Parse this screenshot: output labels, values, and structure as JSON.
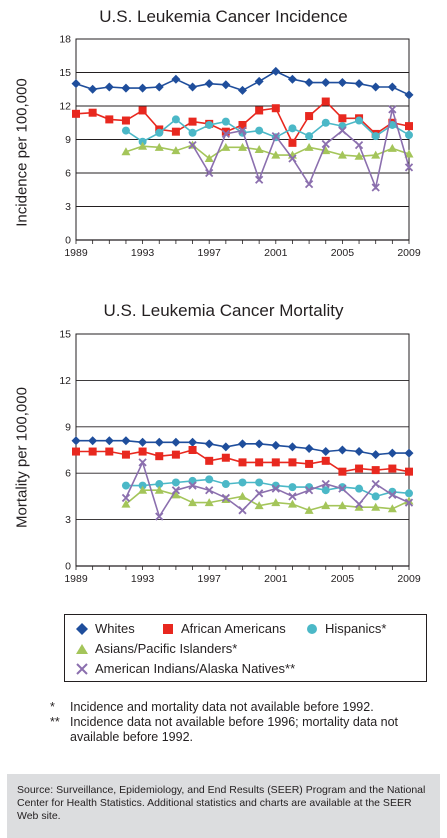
{
  "chart_data": [
    {
      "type": "line",
      "title": "U.S. Leukemia Cancer Incidence",
      "ylabel": "Incidence per 100,000",
      "xlabel": "",
      "ylim": [
        0,
        18
      ],
      "yticks": [
        0,
        3,
        6,
        9,
        12,
        15,
        18
      ],
      "xlim": [
        1989,
        2009
      ],
      "xticks": [
        1989,
        1993,
        1997,
        2001,
        2005,
        2009
      ],
      "grid": "horizontal",
      "series": [
        {
          "name": "Whites",
          "color": "#1f4e9c",
          "marker": "diamond",
          "x": [
            1989,
            1990,
            1991,
            1992,
            1993,
            1994,
            1995,
            1996,
            1997,
            1998,
            1999,
            2000,
            2001,
            2002,
            2003,
            2004,
            2005,
            2006,
            2007,
            2008,
            2009
          ],
          "values": [
            14.0,
            13.5,
            13.7,
            13.6,
            13.6,
            13.7,
            14.4,
            13.7,
            14.0,
            13.9,
            13.4,
            14.2,
            15.1,
            14.4,
            14.1,
            14.1,
            14.1,
            14.0,
            13.7,
            13.7,
            13.0
          ]
        },
        {
          "name": "African Americans",
          "color": "#e8281f",
          "marker": "square",
          "x": [
            1989,
            1990,
            1991,
            1992,
            1993,
            1994,
            1995,
            1996,
            1997,
            1998,
            1999,
            2000,
            2001,
            2002,
            2003,
            2004,
            2005,
            2006,
            2007,
            2008,
            2009
          ],
          "values": [
            11.3,
            11.4,
            10.8,
            10.7,
            11.6,
            9.9,
            9.7,
            10.6,
            10.4,
            9.7,
            10.3,
            11.6,
            11.8,
            8.7,
            11.1,
            12.4,
            10.9,
            10.9,
            9.5,
            10.5,
            10.2
          ]
        },
        {
          "name": "Hispanics*",
          "color": "#4bb8c7",
          "marker": "circle",
          "x": [
            1992,
            1993,
            1994,
            1995,
            1996,
            1997,
            1998,
            1999,
            2000,
            2001,
            2002,
            2003,
            2004,
            2005,
            2006,
            2007,
            2008,
            2009
          ],
          "values": [
            9.8,
            8.8,
            9.6,
            10.8,
            9.6,
            10.3,
            10.6,
            9.6,
            9.8,
            9.2,
            10.0,
            9.3,
            10.5,
            10.2,
            10.7,
            9.3,
            10.3,
            9.4
          ]
        },
        {
          "name": "Asians/Pacific Islanders*",
          "color": "#a4c55a",
          "marker": "triangle",
          "x": [
            1992,
            1993,
            1994,
            1995,
            1996,
            1997,
            1998,
            1999,
            2000,
            2001,
            2002,
            2003,
            2004,
            2005,
            2006,
            2007,
            2008,
            2009
          ],
          "values": [
            7.9,
            8.4,
            8.3,
            8.0,
            8.5,
            7.3,
            8.3,
            8.3,
            8.1,
            7.6,
            7.6,
            8.3,
            8.0,
            7.6,
            7.5,
            7.6,
            8.2,
            7.7
          ]
        },
        {
          "name": "American Indians/Alaska Natives**",
          "color": "#8b6fae",
          "marker": "x",
          "x": [
            1996,
            1997,
            1998,
            1999,
            2000,
            2001,
            2002,
            2003,
            2004,
            2005,
            2006,
            2007,
            2008,
            2009
          ],
          "values": [
            8.5,
            6.0,
            9.5,
            9.8,
            5.4,
            9.3,
            7.3,
            5.0,
            8.6,
            9.8,
            8.5,
            4.7,
            11.7,
            6.5
          ]
        }
      ]
    },
    {
      "type": "line",
      "title": "U.S. Leukemia Cancer Mortality",
      "ylabel": "Mortality per 100,000",
      "xlabel": "",
      "ylim": [
        0,
        15
      ],
      "yticks": [
        0,
        3,
        6,
        9,
        12,
        15
      ],
      "xlim": [
        1989,
        2009
      ],
      "xticks": [
        1989,
        1993,
        1997,
        2001,
        2005,
        2009
      ],
      "grid": "horizontal",
      "series": [
        {
          "name": "Whites",
          "color": "#1f4e9c",
          "marker": "diamond",
          "x": [
            1989,
            1990,
            1991,
            1992,
            1993,
            1994,
            1995,
            1996,
            1997,
            1998,
            1999,
            2000,
            2001,
            2002,
            2003,
            2004,
            2005,
            2006,
            2007,
            2008,
            2009
          ],
          "values": [
            8.1,
            8.1,
            8.1,
            8.1,
            8.0,
            8.0,
            8.0,
            8.0,
            7.9,
            7.7,
            7.9,
            7.9,
            7.8,
            7.7,
            7.6,
            7.4,
            7.5,
            7.4,
            7.2,
            7.3,
            7.3
          ]
        },
        {
          "name": "African Americans",
          "color": "#e8281f",
          "marker": "square",
          "x": [
            1989,
            1990,
            1991,
            1992,
            1993,
            1994,
            1995,
            1996,
            1997,
            1998,
            1999,
            2000,
            2001,
            2002,
            2003,
            2004,
            2005,
            2006,
            2007,
            2008,
            2009
          ],
          "values": [
            7.4,
            7.4,
            7.4,
            7.2,
            7.4,
            7.1,
            7.2,
            7.5,
            6.8,
            7.0,
            6.7,
            6.7,
            6.7,
            6.7,
            6.6,
            6.8,
            6.1,
            6.3,
            6.2,
            6.3,
            6.1
          ]
        },
        {
          "name": "Hispanics*",
          "color": "#4bb8c7",
          "marker": "circle",
          "x": [
            1992,
            1993,
            1994,
            1995,
            1996,
            1997,
            1998,
            1999,
            2000,
            2001,
            2002,
            2003,
            2004,
            2005,
            2006,
            2007,
            2008,
            2009
          ],
          "values": [
            5.2,
            5.2,
            5.3,
            5.4,
            5.5,
            5.6,
            5.3,
            5.4,
            5.4,
            5.2,
            5.1,
            5.1,
            4.9,
            5.1,
            5.0,
            4.5,
            4.8,
            4.7
          ]
        },
        {
          "name": "Asians/Pacific Islanders*",
          "color": "#a4c55a",
          "marker": "triangle",
          "x": [
            1992,
            1993,
            1994,
            1995,
            1996,
            1997,
            1998,
            1999,
            2000,
            2001,
            2002,
            2003,
            2004,
            2005,
            2006,
            2007,
            2008,
            2009
          ],
          "values": [
            4.0,
            4.9,
            4.9,
            4.6,
            4.1,
            4.1,
            4.3,
            4.5,
            3.9,
            4.1,
            4.0,
            3.6,
            3.9,
            3.9,
            3.8,
            3.8,
            3.7,
            4.2
          ]
        },
        {
          "name": "American Indians/Alaska Natives**",
          "color": "#8b6fae",
          "marker": "x",
          "x": [
            1992,
            1993,
            1994,
            1995,
            1996,
            1997,
            1998,
            1999,
            2000,
            2001,
            2002,
            2003,
            2004,
            2005,
            2006,
            2007,
            2008,
            2009
          ],
          "values": [
            4.4,
            6.7,
            3.2,
            4.9,
            5.2,
            4.9,
            4.4,
            3.6,
            4.7,
            5.0,
            4.5,
            4.9,
            5.3,
            5.0,
            4.0,
            5.3,
            4.6,
            4.1
          ]
        }
      ]
    }
  ],
  "legend": {
    "items": [
      {
        "label": "Whites",
        "marker": "diamond",
        "color": "#1f4e9c"
      },
      {
        "label": "African Americans",
        "marker": "square",
        "color": "#e8281f"
      },
      {
        "label": "Hispanics*",
        "marker": "circle",
        "color": "#4bb8c7"
      },
      {
        "label": "Asians/Pacific Islanders*",
        "marker": "triangle",
        "color": "#a4c55a"
      },
      {
        "label": "American Indians/Alaska Natives**",
        "marker": "x",
        "color": "#8b6fae"
      }
    ]
  },
  "footnotes": {
    "note1_mark": "*",
    "note1_text": "Incidence and mortality data not available before 1992.",
    "note2_mark": "**",
    "note2_text": "Incidence data not available before 1996; mortality data not available before 1992."
  },
  "source": {
    "text": "Source: Surveillance, Epidemiology, and End Results (SEER) Program and the National Center for Health Statistics. Additional statistics and charts are available at the SEER Web site."
  }
}
